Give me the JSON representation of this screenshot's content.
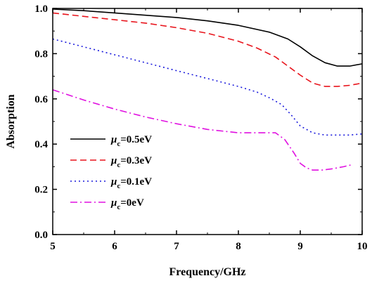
{
  "chart_data": {
    "type": "line",
    "xlabel": "Frequency/GHz",
    "ylabel": "Absorption",
    "xlim": [
      5,
      10
    ],
    "ylim": [
      0.0,
      1.0
    ],
    "xticks": [
      "5",
      "6",
      "7",
      "8",
      "9",
      "10"
    ],
    "yticks": [
      "0.0",
      "0.2",
      "0.4",
      "0.6",
      "0.8",
      "1.0"
    ],
    "grid": false,
    "legend_position": "bottom-left",
    "series": [
      {
        "name": "μc=0.5eV",
        "label_symbol": "μ",
        "label_sub": "c",
        "label_rest": "=0.5eV",
        "color": "#000000",
        "dash": "solid",
        "x": [
          5.0,
          5.5,
          6.0,
          6.5,
          7.0,
          7.5,
          8.0,
          8.5,
          8.8,
          9.0,
          9.2,
          9.4,
          9.6,
          9.8,
          10.0
        ],
        "y": [
          0.997,
          0.99,
          0.98,
          0.97,
          0.96,
          0.945,
          0.925,
          0.895,
          0.865,
          0.83,
          0.79,
          0.76,
          0.745,
          0.745,
          0.755
        ]
      },
      {
        "name": "μc=0.3eV",
        "label_symbol": "μ",
        "label_sub": "c",
        "label_rest": "=0.3eV",
        "color": "#e8141c",
        "dash": "dashed",
        "x": [
          5.0,
          5.5,
          6.0,
          6.5,
          7.0,
          7.5,
          8.0,
          8.3,
          8.6,
          8.8,
          9.0,
          9.2,
          9.4,
          9.6,
          9.8,
          10.0
        ],
        "y": [
          0.98,
          0.965,
          0.95,
          0.935,
          0.915,
          0.89,
          0.855,
          0.825,
          0.785,
          0.745,
          0.705,
          0.67,
          0.655,
          0.655,
          0.66,
          0.67
        ]
      },
      {
        "name": "μc=0.1eV",
        "label_symbol": "μ",
        "label_sub": "c",
        "label_rest": "=0.1eV",
        "color": "#1a1adc",
        "dash": "dotted",
        "x": [
          5.0,
          5.5,
          6.0,
          6.5,
          7.0,
          7.5,
          8.0,
          8.3,
          8.5,
          8.7,
          8.85,
          9.0,
          9.2,
          9.4,
          9.6,
          9.8,
          10.0
        ],
        "y": [
          0.865,
          0.83,
          0.795,
          0.76,
          0.725,
          0.69,
          0.655,
          0.63,
          0.605,
          0.575,
          0.53,
          0.48,
          0.45,
          0.44,
          0.44,
          0.44,
          0.445
        ]
      },
      {
        "name": "μc=0eV",
        "label_symbol": "μ",
        "label_sub": "c",
        "label_rest": "=0eV",
        "color": "#e010e0",
        "dash": "dashdot",
        "x": [
          5.0,
          5.5,
          6.0,
          6.5,
          7.0,
          7.5,
          8.0,
          8.3,
          8.6,
          8.75,
          8.9,
          9.0,
          9.1,
          9.2,
          9.35,
          9.5,
          9.7,
          9.85
        ],
        "y": [
          0.64,
          0.595,
          0.555,
          0.52,
          0.49,
          0.465,
          0.45,
          0.45,
          0.45,
          0.42,
          0.36,
          0.315,
          0.295,
          0.285,
          0.285,
          0.29,
          0.3,
          0.31
        ]
      }
    ]
  }
}
